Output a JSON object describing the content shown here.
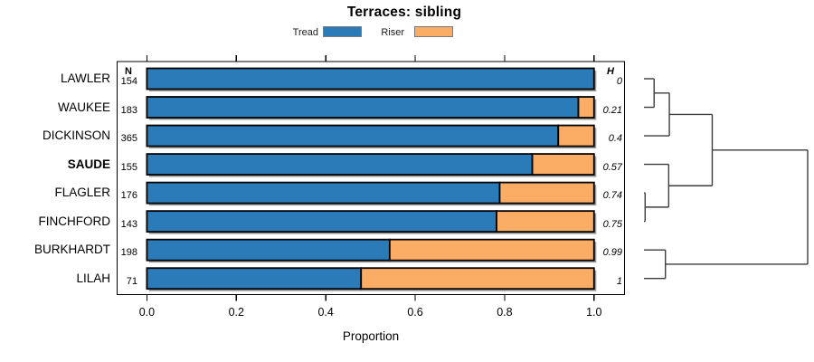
{
  "chart_data": {
    "type": "bar",
    "orientation": "horizontal_stacked",
    "title": "Terraces: sibling",
    "xlabel": "Proportion",
    "xlim": [
      0,
      1
    ],
    "x_ticks": [
      0.0,
      0.2,
      0.4,
      0.6,
      0.8,
      1.0
    ],
    "x_tick_labels": [
      "0.0",
      "0.2",
      "0.4",
      "0.6",
      "0.8",
      "1.0"
    ],
    "legend": [
      {
        "label": "Tread",
        "color": "#2B7BB9"
      },
      {
        "label": "Riser",
        "color": "#FBAC65"
      }
    ],
    "categories": [
      "LAWLER",
      "WAUKEE",
      "DICKINSON",
      "SAUDE",
      "FLAGLER",
      "FINCHFORD",
      "BURKHARDT",
      "LILAH"
    ],
    "highlighted_category": "SAUDE",
    "n_header": "N",
    "h_header": "H",
    "n_values": [
      "154",
      "183",
      "365",
      "155",
      "176",
      "143",
      "198",
      "71"
    ],
    "h_values": [
      "0",
      "0.21",
      "0.4",
      "0.57",
      "0.74",
      "0.75",
      "0.99",
      "1"
    ],
    "series": [
      {
        "name": "Tread",
        "values": [
          1.0,
          0.965,
          0.92,
          0.862,
          0.789,
          0.782,
          0.543,
          0.479
        ]
      },
      {
        "name": "Riser",
        "values": [
          0.0,
          0.035,
          0.08,
          0.138,
          0.211,
          0.218,
          0.457,
          0.521
        ]
      }
    ],
    "dendrogram": {
      "merges": [
        {
          "a": "LAWLER",
          "b": "WAUKEE",
          "h": 0.062
        },
        {
          "a": "m0",
          "b": "DICKINSON",
          "h": 0.155
        },
        {
          "a": "FLAGLER",
          "b": "FINCHFORD",
          "h": 0.007
        },
        {
          "a": "SAUDE",
          "b": "m2",
          "h": 0.151
        },
        {
          "a": "m1",
          "b": "m3",
          "h": 0.417
        },
        {
          "a": "BURKHARDT",
          "b": "LILAH",
          "h": 0.131
        },
        {
          "a": "m4",
          "b": "m5",
          "h": 1.0
        }
      ]
    }
  },
  "colors": {
    "tread": "#2B7BB9",
    "riser": "#FBAC65",
    "bar_border": "#000000",
    "bar_shadow": "#9b9b9b",
    "box_border": "#000000",
    "tick": "#000000",
    "dendro_line": "#3d3d3d",
    "legend_swatch_border": "#7a7a7a"
  }
}
